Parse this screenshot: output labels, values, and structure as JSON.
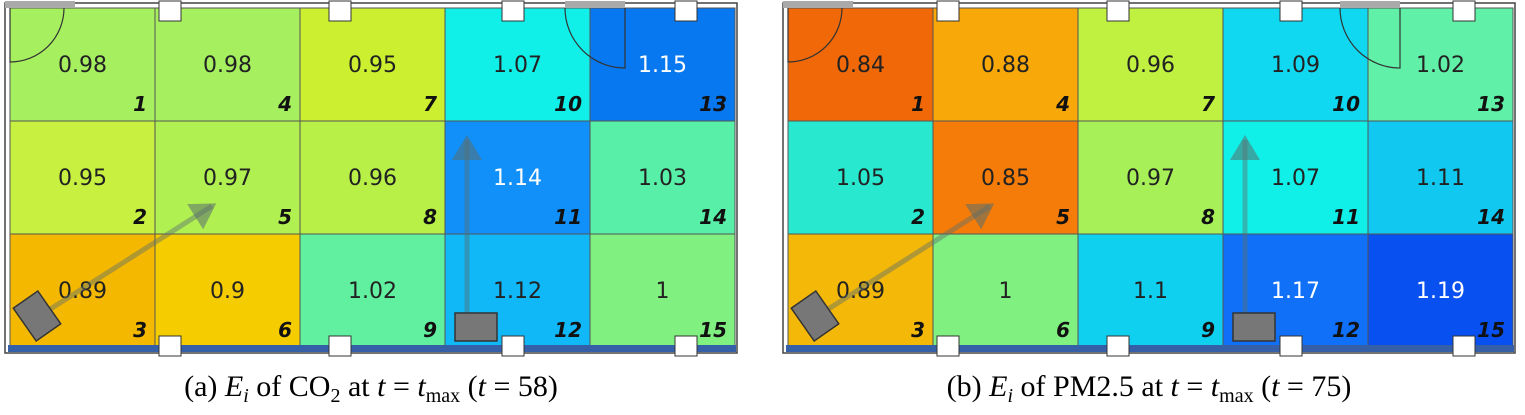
{
  "panels": [
    {
      "caption": [
        {
          "text": "(a) ",
          "style": "normal"
        },
        {
          "text": "E",
          "style": "italic"
        },
        {
          "text": "i",
          "style": "italic-sub"
        },
        {
          "text": " of CO",
          "style": "normal"
        },
        {
          "text": "2",
          "style": "sub"
        },
        {
          "text": " at ",
          "style": "normal"
        },
        {
          "text": "t",
          "style": "italic"
        },
        {
          "text": " = ",
          "style": "normal"
        },
        {
          "text": "t",
          "style": "italic"
        },
        {
          "text": "max",
          "style": "sub"
        },
        {
          "text": " (",
          "style": "normal"
        },
        {
          "text": "t",
          "style": "italic"
        },
        {
          "text": " = 58)",
          "style": "normal"
        }
      ],
      "cells": [
        {
          "id": "1",
          "value": "0.98",
          "color": "#a6f060",
          "text_color": "#222"
        },
        {
          "id": "2",
          "value": "0.95",
          "color": "#c8f040",
          "text_color": "#222"
        },
        {
          "id": "3",
          "value": "0.89",
          "color": "#f5b800",
          "text_color": "#222"
        },
        {
          "id": "4",
          "value": "0.98",
          "color": "#a6f060",
          "text_color": "#222"
        },
        {
          "id": "5",
          "value": "0.97",
          "color": "#b0f050",
          "text_color": "#222"
        },
        {
          "id": "6",
          "value": "0.9",
          "color": "#f5cc00",
          "text_color": "#222"
        },
        {
          "id": "7",
          "value": "0.95",
          "color": "#ccf030",
          "text_color": "#222"
        },
        {
          "id": "8",
          "value": "0.96",
          "color": "#b8f048",
          "text_color": "#222"
        },
        {
          "id": "9",
          "value": "1.02",
          "color": "#60f0a0",
          "text_color": "#222"
        },
        {
          "id": "10",
          "value": "1.07",
          "color": "#10f0e8",
          "text_color": "#222"
        },
        {
          "id": "11",
          "value": "1.14",
          "color": "#1090f8",
          "text_color": "#fff"
        },
        {
          "id": "12",
          "value": "1.12",
          "color": "#10b8f8",
          "text_color": "#222"
        },
        {
          "id": "13",
          "value": "1.15",
          "color": "#0878f0",
          "text_color": "#fff"
        },
        {
          "id": "14",
          "value": "1.03",
          "color": "#58f0a8",
          "text_color": "#222"
        },
        {
          "id": "15",
          "value": "1",
          "color": "#80f080",
          "text_color": "#222"
        }
      ]
    },
    {
      "caption": [
        {
          "text": "(b) ",
          "style": "normal"
        },
        {
          "text": "E",
          "style": "italic"
        },
        {
          "text": "i",
          "style": "italic-sub"
        },
        {
          "text": " of PM2.5 at ",
          "style": "normal"
        },
        {
          "text": "t",
          "style": "italic"
        },
        {
          "text": " = ",
          "style": "normal"
        },
        {
          "text": "t",
          "style": "italic"
        },
        {
          "text": "max",
          "style": "sub"
        },
        {
          "text": " (",
          "style": "normal"
        },
        {
          "text": "t",
          "style": "italic"
        },
        {
          "text": " = 75)",
          "style": "normal"
        }
      ],
      "cells": [
        {
          "id": "1",
          "value": "0.84",
          "color": "#f06808",
          "text_color": "#222"
        },
        {
          "id": "2",
          "value": "1.05",
          "color": "#28e8d0",
          "text_color": "#222"
        },
        {
          "id": "3",
          "value": "0.89",
          "color": "#f4b808",
          "text_color": "#222"
        },
        {
          "id": "4",
          "value": "0.88",
          "color": "#f8a808",
          "text_color": "#222"
        },
        {
          "id": "5",
          "value": "0.85",
          "color": "#f57c08",
          "text_color": "#222"
        },
        {
          "id": "6",
          "value": "1",
          "color": "#80f080",
          "text_color": "#222"
        },
        {
          "id": "7",
          "value": "0.96",
          "color": "#c0f040",
          "text_color": "#222"
        },
        {
          "id": "8",
          "value": "0.97",
          "color": "#a8f058",
          "text_color": "#222"
        },
        {
          "id": "9",
          "value": "1.1",
          "color": "#10d0f0",
          "text_color": "#222"
        },
        {
          "id": "10",
          "value": "1.09",
          "color": "#10d8f0",
          "text_color": "#222"
        },
        {
          "id": "11",
          "value": "1.07",
          "color": "#10f0e8",
          "text_color": "#222"
        },
        {
          "id": "12",
          "value": "1.17",
          "color": "#1070f8",
          "text_color": "#fff"
        },
        {
          "id": "13",
          "value": "1.02",
          "color": "#60f0a8",
          "text_color": "#222"
        },
        {
          "id": "14",
          "value": "1.11",
          "color": "#10c8f0",
          "text_color": "#222"
        },
        {
          "id": "15",
          "value": "1.19",
          "color": "#0850f0",
          "text_color": "#fff"
        }
      ]
    }
  ]
}
